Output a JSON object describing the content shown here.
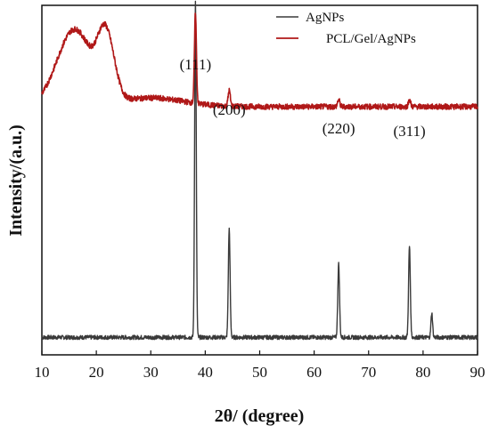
{
  "chart_data": {
    "type": "line",
    "xlabel": "2θ/ (degree)",
    "ylabel": "Intensity/(a.u.)",
    "xlim": [
      10,
      90
    ],
    "xticks": [
      10,
      20,
      30,
      40,
      50,
      60,
      70,
      80,
      90
    ],
    "grid": false,
    "legend_position": "top-right",
    "annotations": [
      {
        "text": "(111)",
        "x": 38.2
      },
      {
        "text": "(200)",
        "x": 44.4
      },
      {
        "text": "(220)",
        "x": 64.5
      },
      {
        "text": "(311)",
        "x": 77.5
      }
    ],
    "series": [
      {
        "name": "AgNPs",
        "color": "#3a3a3a",
        "baseline": 0.05,
        "peaks": [
          {
            "x": 38.2,
            "height": 0.96,
            "width": 0.15
          },
          {
            "x": 44.4,
            "height": 0.31,
            "width": 0.16
          },
          {
            "x": 64.5,
            "height": 0.21,
            "width": 0.16
          },
          {
            "x": 77.5,
            "height": 0.26,
            "width": 0.16
          },
          {
            "x": 81.6,
            "height": 0.07,
            "width": 0.15
          }
        ],
        "humps": []
      },
      {
        "name": "PCL/Gel/AgNPs",
        "color": "#b01818",
        "baseline": 0.71,
        "peaks": [
          {
            "x": 38.2,
            "height": 0.26,
            "width": 0.18
          },
          {
            "x": 44.4,
            "height": 0.045,
            "width": 0.2
          },
          {
            "x": 64.5,
            "height": 0.02,
            "width": 0.2
          },
          {
            "x": 77.5,
            "height": 0.02,
            "width": 0.2
          }
        ],
        "humps": [
          {
            "x": 16.0,
            "height": 0.22,
            "width": 3.2
          },
          {
            "x": 21.4,
            "height": 0.15,
            "width": 1.3
          },
          {
            "x": 23.0,
            "height": 0.06,
            "width": 1.2
          },
          {
            "x": 30.0,
            "height": 0.025,
            "width": 6.0
          }
        ]
      }
    ]
  }
}
